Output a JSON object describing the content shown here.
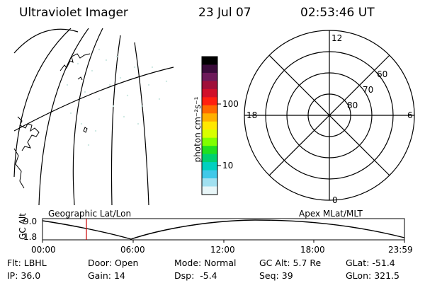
{
  "header": {
    "instrument": "Ultraviolet Imager",
    "date": "23 Jul 07",
    "time": "02:53:46 UT"
  },
  "colorbar": {
    "label": "photon cm⁻²s⁻¹",
    "ticks": [
      "100",
      "10"
    ],
    "colors": [
      "#000000",
      "#3a0b3a",
      "#6d1a5a",
      "#a0103a",
      "#d0102a",
      "#ff2010",
      "#ff6a00",
      "#ffb000",
      "#ffe800",
      "#d8ff00",
      "#80ff00",
      "#20e020",
      "#00d070",
      "#00d0c0",
      "#40c8e8",
      "#a0e0f0",
      "#e8f6f8"
    ]
  },
  "polar": {
    "mlt_labels": {
      "top": "12",
      "left": "18",
      "right": "6",
      "bottom": "0"
    },
    "lat_labels": [
      "60",
      "70",
      "80"
    ]
  },
  "map_titles": {
    "left": "Geographic Lat/Lon",
    "right": "Apex MLat/MLT"
  },
  "orbit": {
    "ylabel": "GC Alt",
    "y_ticks": [
      "9.0",
      "1.8"
    ],
    "x_ticks": [
      "00:00",
      "06:00",
      "12:00",
      "18:00",
      "23:59"
    ],
    "current_time_marker": "02:53:46",
    "marker_color": "#cc0000"
  },
  "status": {
    "row1": [
      {
        "label": "Flt:",
        "value": "LBHL"
      },
      {
        "label": "Door:",
        "value": "Open"
      },
      {
        "label": "Mode:",
        "value": "Normal"
      },
      {
        "label": "GC Alt:",
        "value": "5.7 Re"
      },
      {
        "label": "GLat:",
        "value": "-51.4"
      }
    ],
    "row2": [
      {
        "label": "IP:",
        "value": "36.0"
      },
      {
        "label": "Gain:",
        "value": "14"
      },
      {
        "label": "Dsp:",
        "value": "-5.4"
      },
      {
        "label": "Seq:",
        "value": "39"
      },
      {
        "label": "GLon:",
        "value": "321.5"
      }
    ]
  }
}
